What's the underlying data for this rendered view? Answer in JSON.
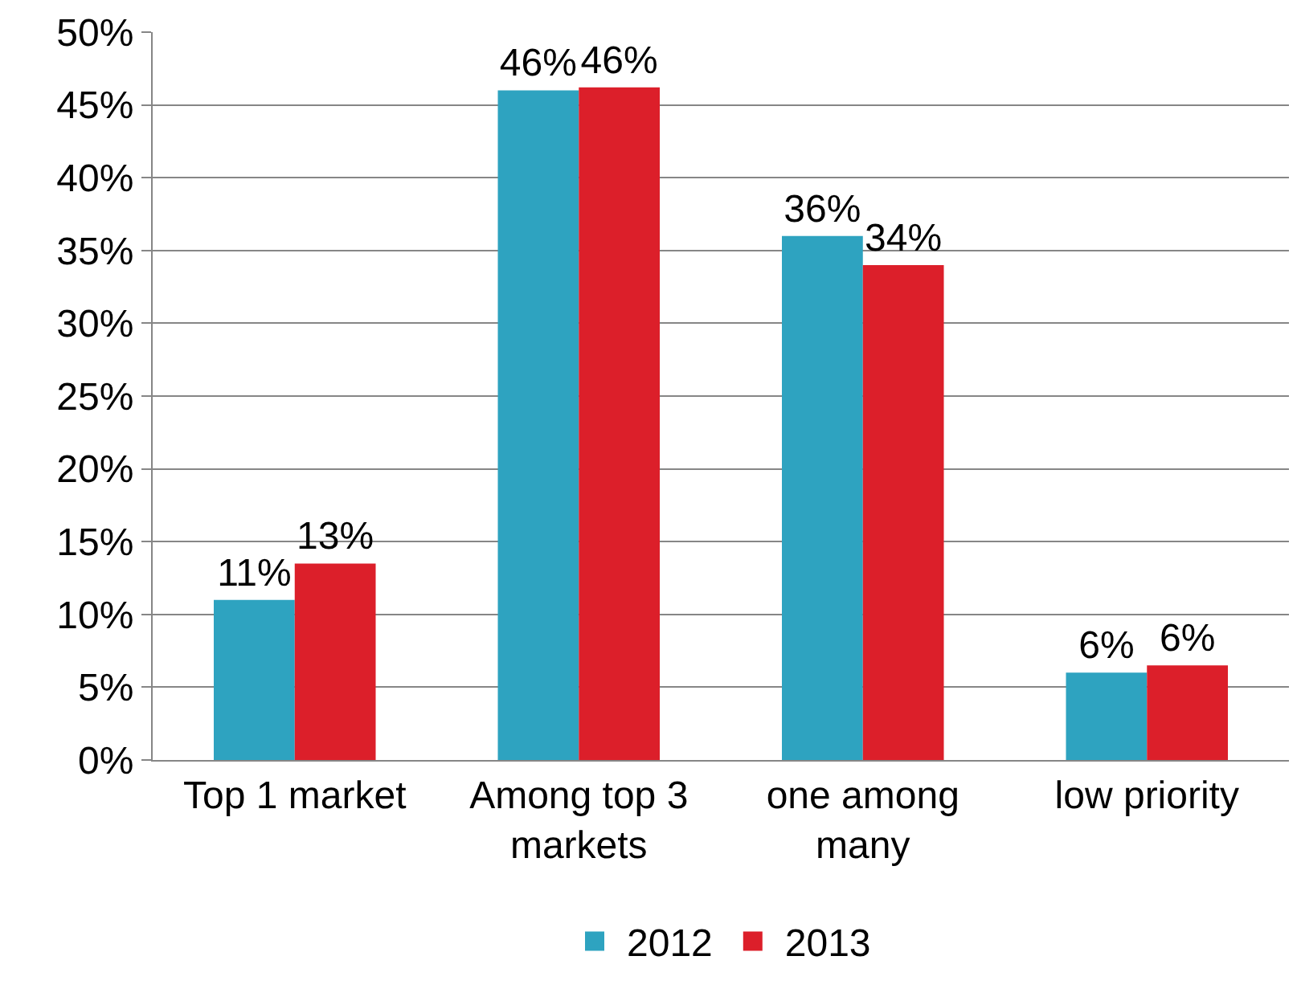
{
  "chart_data": {
    "type": "bar",
    "categories": [
      "Top 1 market",
      "Among top 3\nmarkets",
      "one among\nmany",
      "low priority"
    ],
    "series": [
      {
        "name": "2012",
        "color": "#2ea3c0",
        "values": [
          11,
          46,
          36,
          6
        ],
        "value_labels": [
          "11%",
          "46%",
          "36%",
          "6%"
        ]
      },
      {
        "name": "2013",
        "color": "#dc1f2a",
        "values": [
          13.5,
          46.2,
          34,
          6.5
        ],
        "value_labels": [
          "13%",
          "46%",
          "34%",
          "6%"
        ]
      }
    ],
    "ylim": [
      0,
      50
    ],
    "yticks": [
      {
        "value": 0,
        "label": "0%"
      },
      {
        "value": 5,
        "label": "5%"
      },
      {
        "value": 10,
        "label": "10%"
      },
      {
        "value": 15,
        "label": "15%"
      },
      {
        "value": 20,
        "label": "20%"
      },
      {
        "value": 25,
        "label": "25%"
      },
      {
        "value": 30,
        "label": "30%"
      },
      {
        "value": 35,
        "label": "35%"
      },
      {
        "value": 40,
        "label": "40%"
      },
      {
        "value": 45,
        "label": "45%"
      },
      {
        "value": 50,
        "label": "50%"
      }
    ],
    "grid": "y",
    "legend": "bottom"
  }
}
